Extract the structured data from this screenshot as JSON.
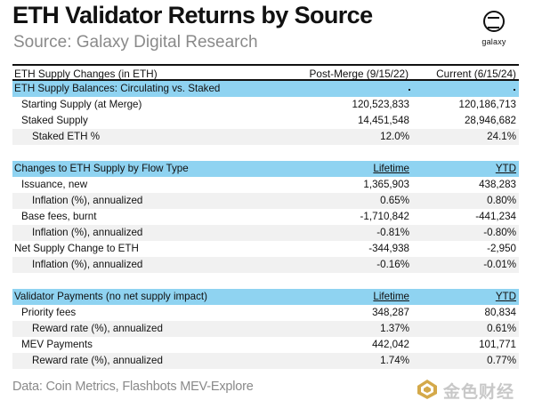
{
  "header": {
    "title": "ETH Validator Returns by Source",
    "subtitle": "Source: Galaxy Digital Research",
    "logo_text": "galaxy"
  },
  "table": {
    "columns": [
      "ETH Supply Changes (in ETH)",
      "Post-Merge (9/15/22)",
      "Current (6/15/24)"
    ],
    "balances": {
      "title": "ETH Supply Balances: Circulating vs. Staked",
      "rows": [
        {
          "label": "Starting Supply (at Merge)",
          "post": "120,523,833",
          "current": "120,186,713"
        },
        {
          "label": "Staked Supply",
          "post": "14,451,548",
          "current": "28,946,682"
        },
        {
          "label": "Staked ETH %",
          "post": "12.0%",
          "current": "24.1%"
        }
      ]
    },
    "flow": {
      "title": "Changes to ETH Supply by Flow Type",
      "col1": "Lifetime",
      "col2": "YTD",
      "rows": [
        {
          "label": "Issuance, new",
          "post": "1,365,903",
          "current": "438,283"
        },
        {
          "label": "Inflation (%), annualized",
          "post": "0.65%",
          "current": "0.80%"
        },
        {
          "label": "Base fees, burnt",
          "post": "-1,710,842",
          "current": "-441,234"
        },
        {
          "label": "Inflation (%), annualized",
          "post": "-0.81%",
          "current": "-0.80%"
        },
        {
          "label": "Net Supply Change to ETH",
          "post": "-344,938",
          "current": "-2,950"
        },
        {
          "label": "Inflation (%), annualized",
          "post": "-0.16%",
          "current": "-0.01%"
        }
      ]
    },
    "validator": {
      "title": "Validator Payments (no net supply impact)",
      "col1": "Lifetime",
      "col2": "YTD",
      "rows": [
        {
          "label": "Priority fees",
          "post": "348,287",
          "current": "80,834"
        },
        {
          "label": "Reward rate (%), annualized",
          "post": "1.37%",
          "current": "0.61%"
        },
        {
          "label": "MEV Payments",
          "post": "442,042",
          "current": "101,771"
        },
        {
          "label": "Reward rate (%), annualized",
          "post": "1.74%",
          "current": "0.77%"
        }
      ]
    }
  },
  "footer": {
    "source": "Data: Coin Metrics, Flashbots MEV-Explore",
    "watermark": "金色财经"
  },
  "colors": {
    "section_fill": "#8fd3f1",
    "shade_fill": "#f1f1f1",
    "muted_text": "#8a8a8a",
    "watermark": "#c8c8c8"
  }
}
